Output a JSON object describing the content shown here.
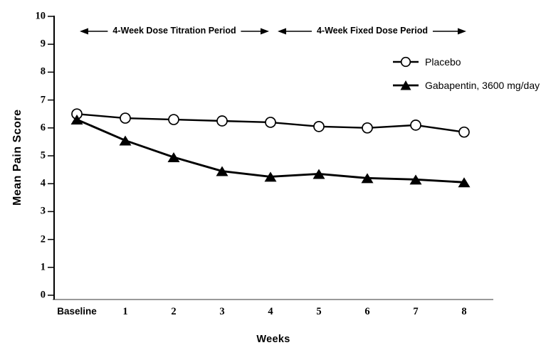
{
  "chart_data": {
    "type": "line",
    "title": "",
    "categories": [
      "Baseline",
      "1",
      "2",
      "3",
      "4",
      "5",
      "6",
      "7",
      "8"
    ],
    "series": [
      {
        "name": "Placebo",
        "marker": "open-circle",
        "values": [
          6.5,
          6.35,
          6.3,
          6.25,
          6.2,
          6.05,
          6.0,
          6.1,
          5.85
        ]
      },
      {
        "name": "Gabapentin, 3600 mg/day",
        "marker": "filled-triangle",
        "values": [
          6.3,
          5.55,
          4.95,
          4.45,
          4.25,
          4.35,
          4.2,
          4.15,
          4.05
        ]
      }
    ],
    "xlabel": "Weeks",
    "ylabel": "Mean Pain Score",
    "ylim": [
      0,
      10
    ],
    "yticks": [
      0,
      1,
      2,
      3,
      4,
      5,
      6,
      7,
      8,
      9,
      10
    ],
    "grid": false,
    "legend_position": "upper right",
    "annotations": [
      {
        "text": "4-Week Dose Titration Period",
        "span_categories": [
          "Baseline",
          "4"
        ]
      },
      {
        "text": "4-Week Fixed Dose Period",
        "span_categories": [
          "4",
          "8"
        ]
      }
    ],
    "colors": {
      "series_line": "#000000",
      "y_axis_line": "#000000",
      "x_axis_line": "#9a9a9a",
      "background": "#ffffff",
      "marker_fill_open": "#ffffff",
      "marker_fill_solid": "#000000"
    }
  }
}
